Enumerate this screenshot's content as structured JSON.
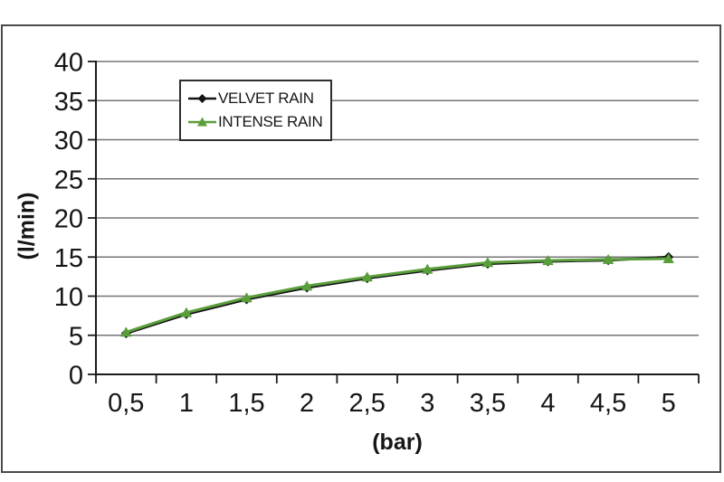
{
  "chart_data": {
    "type": "line",
    "title": "",
    "xlabel": "(bar)",
    "ylabel": "(l/min)",
    "categories": [
      "0,5",
      "1",
      "1,5",
      "2",
      "2,5",
      "3",
      "3,5",
      "4",
      "4,5",
      "5"
    ],
    "series": [
      {
        "name": "VELVET RAIN",
        "marker": "diamond",
        "color": "#141414",
        "values": [
          5.25,
          7.7,
          9.6,
          11.1,
          12.3,
          13.3,
          14.15,
          14.45,
          14.6,
          15.0
        ]
      },
      {
        "name": "INTENSE RAIN",
        "marker": "triangle",
        "color": "#5a9e3c",
        "values": [
          5.4,
          7.9,
          9.8,
          11.3,
          12.45,
          13.45,
          14.3,
          14.55,
          14.7,
          14.8
        ]
      }
    ],
    "ylim": [
      0,
      40
    ],
    "yticks": [
      0,
      5,
      10,
      15,
      20,
      25,
      30,
      35,
      40
    ],
    "grid": "horizontal",
    "gridline_color": "#757575",
    "axis_color": "#1a1a1a",
    "tick_label_color": "#161616",
    "legend_position": "inside-top-center",
    "x_axis_tick_placement": "between-categories"
  }
}
